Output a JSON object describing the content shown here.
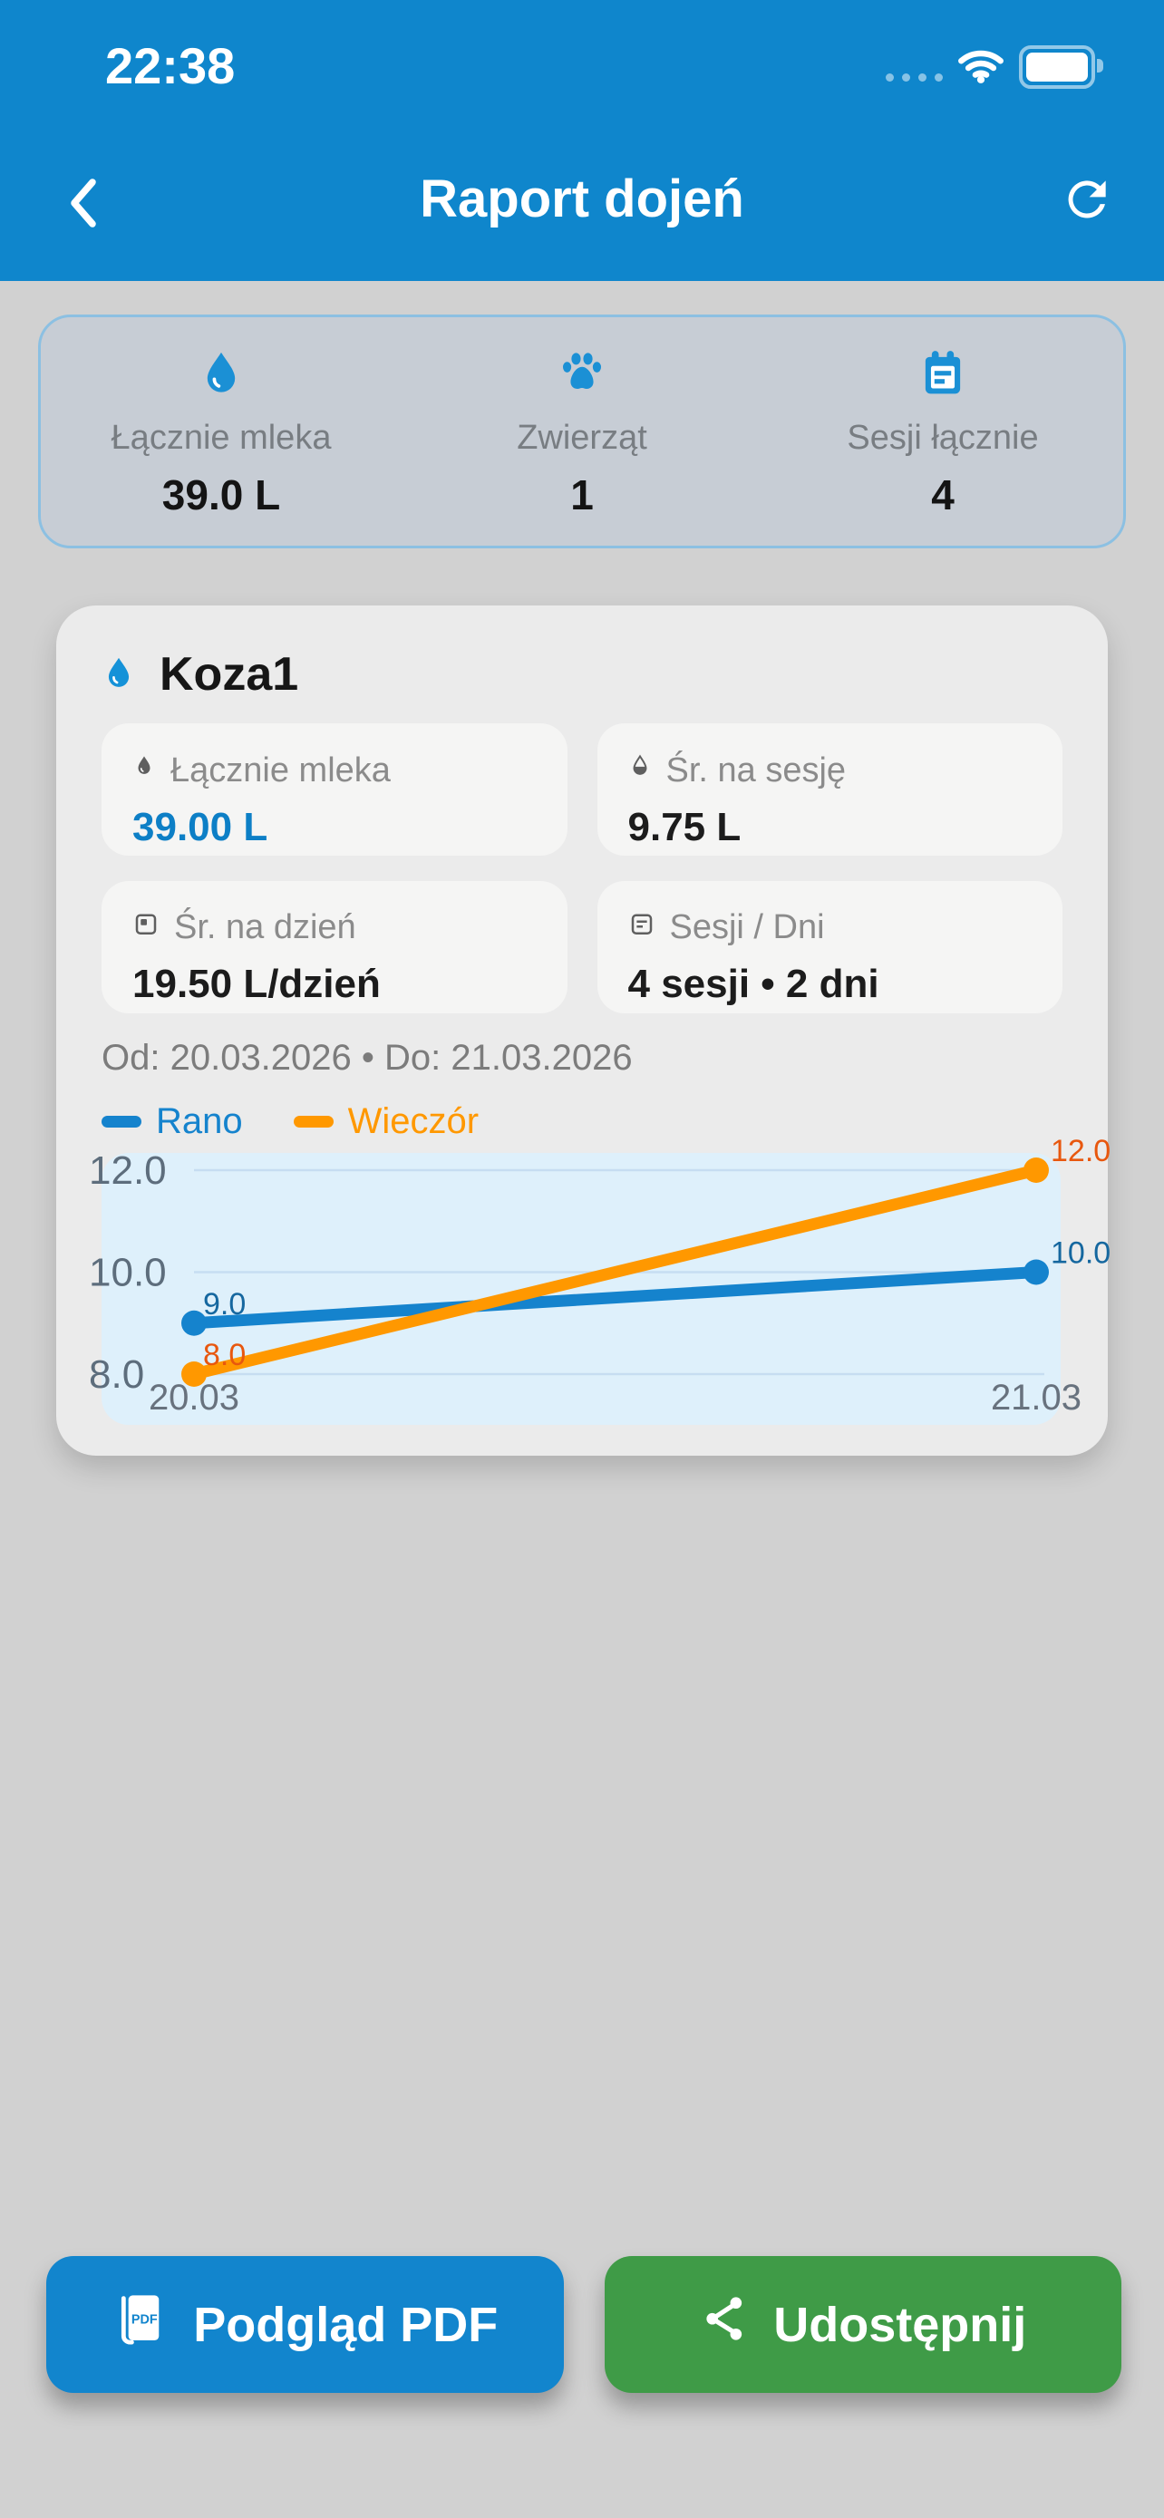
{
  "status_bar": {
    "time": "22:38"
  },
  "nav": {
    "title": "Raport dojeń"
  },
  "summary_card": {
    "items": [
      {
        "icon": "water-drop-icon",
        "label": "Łącznie mleka",
        "value": "39.0 L"
      },
      {
        "icon": "paw-icon",
        "label": "Zwierząt",
        "value": "1"
      },
      {
        "icon": "calendar-note-icon",
        "label": "Sesji łącznie",
        "value": "4"
      }
    ]
  },
  "animal_card": {
    "title": "Koza1",
    "stats": [
      {
        "icon": "water-drop-icon",
        "label": "Łącznie mleka",
        "value": "39.00 L"
      },
      {
        "icon": "half-drop-icon",
        "label": "Śr. na sesję",
        "value": "9.75 L"
      },
      {
        "icon": "calendar-day-icon",
        "label": "Śr. na dzień",
        "value": "19.50 L/dzień"
      },
      {
        "icon": "calendar-lines-icon",
        "label": "Sesji / Dni",
        "value": "4 sesji  •  2 dni"
      }
    ],
    "date_range": "Od: 20.03.2026  •  Do: 21.03.2026"
  },
  "chart_data": {
    "type": "line",
    "x": [
      "20.03",
      "21.03"
    ],
    "series": [
      {
        "name": "Rano",
        "color": "#1583cd",
        "label_color": "#15679f",
        "values": [
          9.0,
          10.0
        ]
      },
      {
        "name": "Wieczór",
        "color": "#ff9800",
        "label_color": "#e8570e",
        "values": [
          8.0,
          12.0
        ]
      }
    ],
    "yticks": [
      8.0,
      10.0,
      12.0
    ],
    "ylim": [
      7.0,
      12.35
    ],
    "grid": true,
    "legend_position": "top-left",
    "background": "#def0fb"
  },
  "actions": {
    "pdf_button": "Podgląd PDF",
    "share_button": "Udostępnij"
  },
  "colors": {
    "header_blue": "#0f86cc",
    "accent_blue": "#0d7fc6",
    "accent_orange": "#ff9800",
    "button_blue": "#1285cd",
    "button_green": "#3f9b47",
    "page_bg": "#d1d1d1",
    "card_bg": "#ebebeb",
    "summary_bg": "#c7cdd5"
  }
}
